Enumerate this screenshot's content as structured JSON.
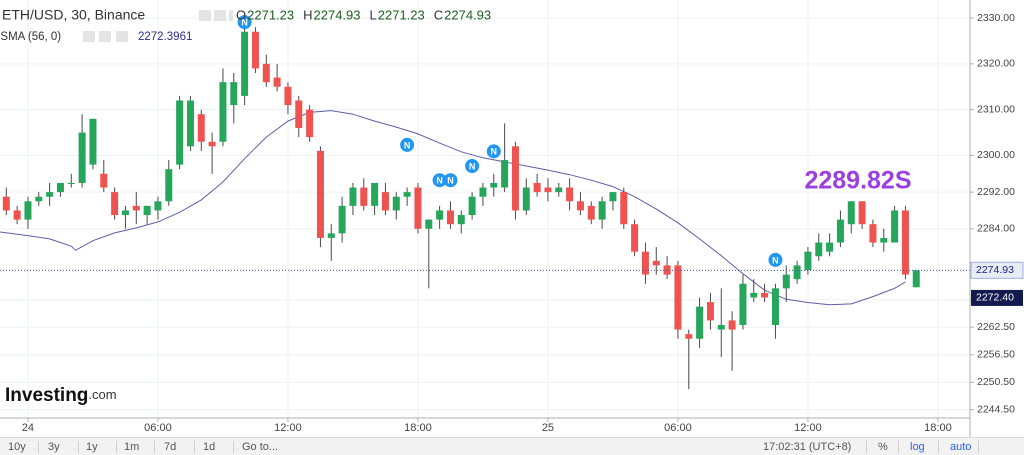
{
  "chart_data": {
    "type": "candlestick",
    "title": "ETH/USD, 30, Binance",
    "ohlc_legend": [
      {
        "label": "O",
        "value": "2271.23"
      },
      {
        "label": "H",
        "value": "2274.93"
      },
      {
        "label": "L",
        "value": "2271.23"
      },
      {
        "label": "C",
        "value": "2274.93"
      }
    ],
    "x": [
      -1,
      -0.5,
      0,
      0.5,
      1,
      1.5,
      2,
      2.5,
      3,
      3.5,
      4,
      4.5,
      5,
      5.5,
      6,
      6.5,
      7,
      7.5,
      8,
      8.5,
      9,
      9.5,
      10,
      10.5,
      11,
      11.5,
      12,
      12.5,
      13,
      13.5,
      14,
      14.5,
      15,
      15.5,
      16,
      16.5,
      17,
      17.5,
      18,
      18.5,
      19,
      19.5,
      20,
      20.5,
      21,
      21.5,
      22,
      22.5,
      23,
      23.5,
      24,
      24.5,
      25,
      25.5,
      26,
      26.5,
      27,
      27.5,
      28,
      28.5,
      29,
      29.5,
      30,
      30.5,
      31,
      31.5,
      32,
      32.5,
      33,
      33.5,
      34,
      34.5,
      35,
      35.5,
      36,
      36.5,
      37,
      37.5,
      38,
      38.5,
      39,
      39.5,
      40,
      40.5,
      41
    ],
    "open": [
      2291,
      2288,
      2286,
      2290,
      2291,
      2292,
      2294,
      2294,
      2298,
      2296,
      2292,
      2287,
      2289,
      2287,
      2288,
      2290,
      2298,
      2302,
      2309,
      2303,
      2303,
      2311,
      2313,
      2327,
      2320,
      2317,
      2315,
      2312,
      2310,
      2301,
      2282,
      2283,
      2289,
      2293,
      2289,
      2292,
      2288,
      2291,
      2293,
      2284,
      2286,
      2288,
      2285,
      2287,
      2291,
      2293,
      2293,
      2302,
      2288,
      2294,
      2293,
      2292,
      2293,
      2290,
      2289,
      2286,
      2290,
      2292,
      2285,
      2279,
      2277,
      2276,
      2276,
      2261,
      2260,
      2268,
      2262,
      2264,
      2263,
      2269,
      2270,
      2263,
      2271,
      2273,
      2275,
      2278,
      2279,
      2281,
      2285,
      2290,
      2285,
      2281,
      2281,
      2288,
      2271.23
    ],
    "high": [
      2293,
      2289,
      2291,
      2292,
      2294,
      2294,
      2296,
      2309,
      2308,
      2299,
      2293,
      2289,
      2292,
      2289,
      2291,
      2299,
      2313,
      2313,
      2310,
      2305,
      2319,
      2318,
      2329,
      2328,
      2322,
      2320,
      2316,
      2313,
      2311,
      2302,
      2285,
      2291,
      2294,
      2295,
      2294,
      2294,
      2292,
      2293,
      2294,
      2286,
      2289,
      2290,
      2288,
      2292,
      2294,
      2296,
      2307,
      2303,
      2295,
      2296,
      2295,
      2294,
      2295,
      2292,
      2290,
      2291,
      2292,
      2293,
      2286,
      2281,
      2280,
      2278,
      2277,
      2262,
      2269,
      2270,
      2271,
      2266,
      2274,
      2273,
      2272,
      2272,
      2276,
      2277,
      2280,
      2283,
      2283,
      2288,
      2290,
      2290,
      2286,
      2284,
      2289,
      2289,
      2274.93
    ],
    "low": [
      2287,
      2285,
      2284,
      2289,
      2289,
      2291,
      2293,
      2293,
      2297,
      2292,
      2286,
      2284,
      2285,
      2285,
      2286,
      2289,
      2297,
      2301,
      2301,
      2296,
      2302,
      2307,
      2311,
      2318,
      2315,
      2314,
      2309,
      2304,
      2303,
      2280,
      2277,
      2281,
      2287,
      2288,
      2287,
      2287,
      2286,
      2289,
      2283,
      2271,
      2284,
      2284,
      2283,
      2286,
      2289,
      2291,
      2292,
      2286,
      2287,
      2291,
      2290,
      2291,
      2288,
      2287,
      2285,
      2284,
      2288,
      2284,
      2278,
      2272,
      2274,
      2273,
      2260,
      2249,
      2258,
      2262,
      2256,
      2253,
      2262,
      2268,
      2268,
      2260,
      2268,
      2272,
      2274,
      2277,
      2278,
      2280,
      2283,
      2284,
      2280,
      2279,
      2281,
      2273,
      2271.23
    ],
    "close": [
      2288,
      2286,
      2290,
      2291,
      2292,
      2294,
      2294,
      2305,
      2308,
      2293,
      2287,
      2288,
      2288,
      2289,
      2290,
      2297,
      2312,
      2312,
      2303,
      2302,
      2316,
      2316,
      2327,
      2319,
      2316,
      2315,
      2311,
      2306,
      2304,
      2282,
      2283,
      2289,
      2293,
      2289,
      2294,
      2288,
      2291,
      2292,
      2284,
      2286,
      2288,
      2285,
      2287,
      2291,
      2293,
      2294,
      2299,
      2288,
      2293,
      2292,
      2292,
      2293,
      2290,
      2288,
      2286,
      2290,
      2292,
      2285,
      2279,
      2274,
      2276,
      2274,
      2262,
      2260,
      2267,
      2264,
      2263,
      2262,
      2272,
      2270,
      2269,
      2271,
      2274,
      2276,
      2279,
      2281,
      2281,
      2286,
      2290,
      2285,
      2281,
      2282,
      2288,
      2274,
      2274.93
    ],
    "up_color": "#26a65b",
    "down_color": "#ef5350",
    "wick_color": "#4a4a4a",
    "lsma": {
      "name": "LSMA (56, 0)",
      "legend_value": "2272.3961",
      "color": "#5c5ea8",
      "x": [
        -1.3,
        0,
        1,
        2,
        2.2,
        3,
        4,
        5,
        6,
        7,
        8,
        9,
        10,
        11,
        12,
        13,
        14,
        15,
        16,
        17,
        18,
        19,
        20,
        21,
        22,
        23,
        24,
        25,
        26,
        27,
        28,
        29,
        30,
        31,
        32,
        33,
        34,
        35,
        36,
        37,
        38,
        39,
        40,
        40.5
      ],
      "values": [
        2283.3,
        2282.5,
        2281.8,
        2280.2,
        2279.3,
        2281.4,
        2283.1,
        2284.2,
        2285.5,
        2287.6,
        2290.3,
        2294.2,
        2299.3,
        2304.0,
        2307.5,
        2309.4,
        2309.8,
        2309.0,
        2307.5,
        2306.2,
        2304.7,
        2302.7,
        2300.8,
        2299.5,
        2298.6,
        2297.7,
        2296.8,
        2295.8,
        2294.6,
        2293.2,
        2291.0,
        2288.3,
        2285.3,
        2281.8,
        2278.1,
        2274.2,
        2270.6,
        2268.6,
        2267.9,
        2267.4,
        2267.6,
        2269.2,
        2271.0,
        2272.3961
      ]
    },
    "last_price": {
      "value": 2274.93,
      "label": "2274.93"
    },
    "lsma_last": {
      "value": 2272.3961,
      "label": "2272.40"
    },
    "events": [
      {
        "x": 10,
        "y": 2329.1,
        "label": "N"
      },
      {
        "x": 17.5,
        "y": 2302.3,
        "label": "N"
      },
      {
        "x": 19,
        "y": 2294.6,
        "label": "N"
      },
      {
        "x": 19.5,
        "y": 2294.6,
        "label": "N"
      },
      {
        "x": 20.5,
        "y": 2297.7,
        "label": "N"
      },
      {
        "x": 21.5,
        "y": 2300.9,
        "label": "N"
      },
      {
        "x": 34.5,
        "y": 2277.2,
        "label": "N"
      }
    ],
    "annotation": "2289.82S",
    "xlim": [
      -1.29,
      43.48
    ],
    "xticks": [
      {
        "value": 0,
        "label": "24"
      },
      {
        "value": 6,
        "label": "06:00"
      },
      {
        "value": 12,
        "label": "12:00"
      },
      {
        "value": 18,
        "label": "18:00"
      },
      {
        "value": 24,
        "label": "25"
      },
      {
        "value": 30,
        "label": "06:00"
      },
      {
        "value": 36,
        "label": "12:00"
      },
      {
        "value": 42,
        "label": "18:00"
      }
    ],
    "ylim": [
      2242.7,
      2333.93
    ],
    "yticks": [
      {
        "value": 2330,
        "label": "2330.00"
      },
      {
        "value": 2320,
        "label": "2320.00"
      },
      {
        "value": 2310,
        "label": "2310.00"
      },
      {
        "value": 2300,
        "label": "2300.00"
      },
      {
        "value": 2292,
        "label": "2292.00"
      },
      {
        "value": 2284,
        "label": "2284.00"
      },
      {
        "value": 2268.5,
        "label": "2268.50"
      },
      {
        "value": 2262.5,
        "label": "2262.50"
      },
      {
        "value": 2256.5,
        "label": "2256.50"
      },
      {
        "value": 2250.5,
        "label": "2250.50"
      },
      {
        "value": 2244.5,
        "label": "2244.50"
      }
    ],
    "grid": true
  },
  "logo": {
    "name": "Investing",
    "suffix": ".com"
  },
  "toolbar": {
    "ranges": [
      "10y",
      "3y",
      "1y",
      "1m",
      "7d",
      "1d"
    ],
    "goto": "Go to...",
    "clock": "17:02:31 (UTC+8)",
    "options": [
      "%",
      "log",
      "auto"
    ]
  }
}
